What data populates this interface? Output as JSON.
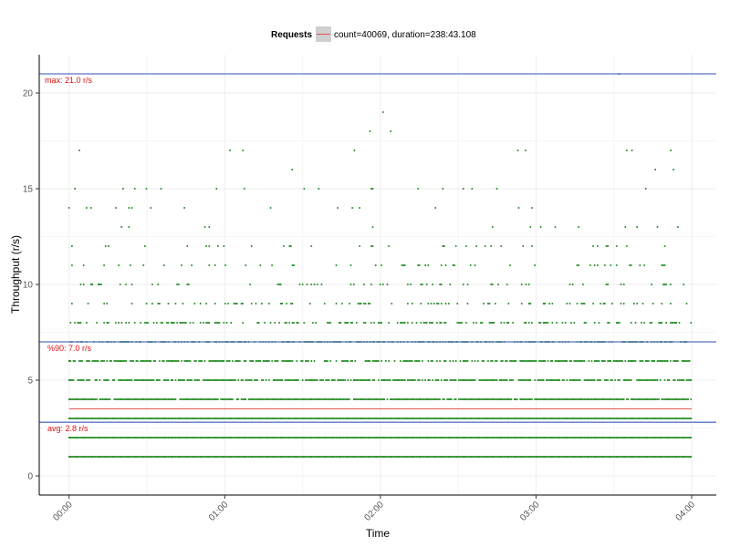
{
  "chart_data": {
    "type": "scatter",
    "title": "",
    "xlabel": "Time",
    "ylabel": "Throughput (r/s)",
    "x_ticks": [
      "00:00",
      "01:00",
      "02:00",
      "03:00",
      "04:00"
    ],
    "x_tick_minutes": [
      0,
      60,
      120,
      180,
      240
    ],
    "xlim_minutes": [
      -11.5,
      249.5
    ],
    "y_ticks": [
      0,
      5,
      10,
      15,
      20
    ],
    "ylim": [
      -1,
      22
    ],
    "grid": true,
    "legend": {
      "title": "Requests",
      "entries": [
        "count=40069, duration=238:43.108"
      ],
      "position": "top"
    },
    "reference_lines": [
      {
        "label": "max: 21.0 r/s",
        "value": 21.0
      },
      {
        "label": "%90: 7.0 r/s",
        "value": 7.0
      },
      {
        "label": "avg: 2.8 r/s",
        "value": 2.8
      }
    ],
    "mean_line": {
      "value": 3.5
    },
    "bands": [
      {
        "y": 1,
        "density": 1.0
      },
      {
        "y": 2,
        "density": 1.0
      },
      {
        "y": 3,
        "density": 1.0
      },
      {
        "y": 4,
        "density": 0.95
      },
      {
        "y": 5,
        "density": 0.8
      },
      {
        "y": 6,
        "density": 0.65
      },
      {
        "y": 7,
        "density": 0.55
      },
      {
        "y": 8,
        "density": 0.38
      },
      {
        "y": 9,
        "density": 0.22
      },
      {
        "y": 10,
        "density": 0.15
      },
      {
        "y": 11,
        "density": 0.12
      },
      {
        "y": 12,
        "density": 0.09
      },
      {
        "y": 13,
        "density": 0.06
      },
      {
        "y": 14,
        "density": 0.04
      },
      {
        "y": 15,
        "density": 0.025
      }
    ],
    "sparse_points": [
      {
        "x": 4,
        "y": 17
      },
      {
        "x": 62,
        "y": 17
      },
      {
        "x": 67,
        "y": 17
      },
      {
        "x": 86,
        "y": 16
      },
      {
        "x": 110,
        "y": 17
      },
      {
        "x": 116,
        "y": 18
      },
      {
        "x": 121,
        "y": 19
      },
      {
        "x": 124,
        "y": 18
      },
      {
        "x": 173,
        "y": 17
      },
      {
        "x": 176,
        "y": 17
      },
      {
        "x": 212,
        "y": 21
      },
      {
        "x": 215,
        "y": 17
      },
      {
        "x": 217,
        "y": 17
      },
      {
        "x": 226,
        "y": 16
      },
      {
        "x": 232,
        "y": 17
      },
      {
        "x": 233,
        "y": 16
      }
    ],
    "colors": {
      "points": "#1f8a1f",
      "reference_line": "#5a75c4",
      "reference_label": "#dd1111",
      "mean_line": "#e05555",
      "legend_key_bg": "#d0d0d0",
      "grid": "#eeeeee"
    }
  }
}
